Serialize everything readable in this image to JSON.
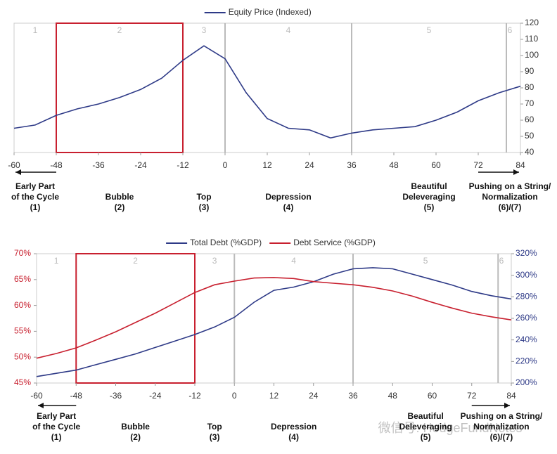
{
  "chart_data": [
    {
      "type": "line",
      "x": [
        -60,
        -54,
        -48,
        -42,
        -36,
        -30,
        -24,
        -18,
        -12,
        -6,
        0,
        6,
        12,
        18,
        24,
        30,
        36,
        42,
        48,
        54,
        60,
        66,
        72,
        78,
        84
      ],
      "series": [
        {
          "name": "Equity Price (Indexed)",
          "color": "#2e3a87",
          "values": [
            55,
            57,
            63,
            67,
            70,
            74,
            79,
            86,
            97,
            106,
            98,
            77,
            61,
            55,
            54,
            49,
            52,
            54,
            55,
            56,
            60,
            65,
            72,
            77,
            81
          ]
        }
      ],
      "xlim": [
        -60,
        84
      ],
      "xticks": [
        -60,
        -48,
        -36,
        -24,
        -12,
        0,
        12,
        24,
        36,
        48,
        60,
        72,
        84
      ],
      "ylim": [
        40,
        120
      ],
      "yticks": [
        40,
        50,
        60,
        70,
        80,
        90,
        100,
        110,
        120
      ],
      "phase_numbers": [
        "1",
        "2",
        "3",
        "4",
        "5",
        "6"
      ],
      "phase_labels": [
        [
          "Early Part",
          "of the Cycle",
          "(1)"
        ],
        [
          "Bubble",
          "(2)"
        ],
        [
          "Top",
          "(3)"
        ],
        [
          "Depression",
          "(4)"
        ],
        [
          "Beautiful",
          "Deleveraging",
          "(5)"
        ],
        [
          "Pushing on a String/",
          "Normalization",
          "(6)/(7)"
        ]
      ],
      "dividers": [
        0,
        36,
        80
      ],
      "highlight": [
        -48,
        -12
      ],
      "highlight_color": "#c8202f"
    },
    {
      "type": "line",
      "x": [
        -60,
        -54,
        -48,
        -42,
        -36,
        -30,
        -24,
        -18,
        -12,
        -6,
        0,
        6,
        12,
        18,
        24,
        30,
        36,
        42,
        48,
        54,
        60,
        66,
        72,
        78,
        84
      ],
      "series": [
        {
          "name": "Total Debt (%GDP)",
          "color": "#2e3a87",
          "axis": "y2",
          "values": [
            206,
            209,
            212,
            217,
            222,
            227,
            233,
            239,
            245,
            252,
            261,
            275,
            286,
            289,
            294,
            301,
            306,
            307,
            306,
            301,
            296,
            291,
            285,
            281,
            278
          ]
        },
        {
          "name": "Debt Service (%GDP)",
          "color": "#c8202f",
          "values": [
            49.8,
            50.7,
            51.8,
            53.3,
            54.9,
            56.7,
            58.5,
            60.5,
            62.5,
            64,
            64.7,
            65.3,
            65.4,
            65.2,
            64.6,
            64.3,
            64,
            63.5,
            62.8,
            61.8,
            60.6,
            59.5,
            58.5,
            57.8,
            57.2
          ]
        }
      ],
      "xlim": [
        -60,
        84
      ],
      "xticks": [
        -60,
        -48,
        -36,
        -24,
        -12,
        0,
        12,
        24,
        36,
        48,
        60,
        72,
        84
      ],
      "ylim": [
        45,
        70
      ],
      "yticks": [
        {
          "value": 45,
          "label": "45%"
        },
        {
          "value": 50,
          "label": "50%"
        },
        {
          "value": 55,
          "label": "55%"
        },
        {
          "value": 60,
          "label": "60%"
        },
        {
          "value": 65,
          "label": "65%"
        },
        {
          "value": 70,
          "label": "70%"
        }
      ],
      "y2lim": [
        200,
        320
      ],
      "y2ticks": [
        {
          "value": 200,
          "label": "200%"
        },
        {
          "value": 220,
          "label": "220%"
        },
        {
          "value": 240,
          "label": "240%"
        },
        {
          "value": 260,
          "label": "260%"
        },
        {
          "value": 280,
          "label": "280%"
        },
        {
          "value": 300,
          "label": "300%"
        },
        {
          "value": 320,
          "label": "320%"
        }
      ],
      "phase_numbers": [
        "1",
        "2",
        "3",
        "4",
        "5",
        "6"
      ],
      "phase_labels": [
        [
          "Early Part",
          "of the Cycle",
          "(1)"
        ],
        [
          "Bubble",
          "(2)"
        ],
        [
          "Top",
          "(3)"
        ],
        [
          "Depression",
          "(4)"
        ],
        [
          "Beautiful",
          "Deleveraging",
          "(5)"
        ],
        [
          "Pushing on a String/",
          "Normalization",
          "(6)/(7)"
        ]
      ],
      "dividers": [
        0,
        36,
        80
      ],
      "highlight": [
        -48,
        -12
      ],
      "highlight_color": "#c8202f"
    }
  ],
  "watermark": "微信号: HedgeFundNotes"
}
